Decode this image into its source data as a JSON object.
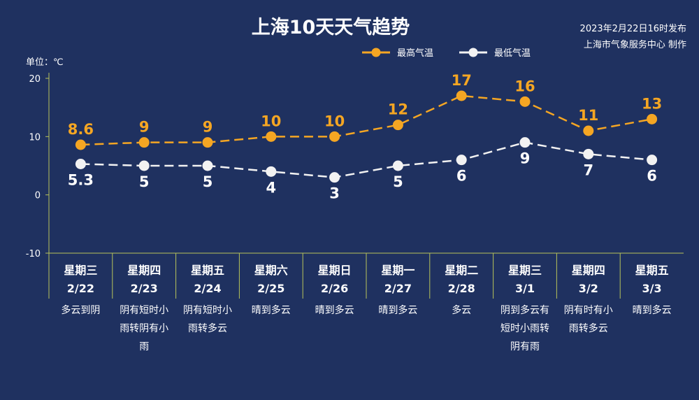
{
  "header": {
    "title": "上海10天天气趋势",
    "publish_time": "2023年2月22日16时发布",
    "publisher": "上海市气象服务中心 制作"
  },
  "colors": {
    "background": "#1f3160",
    "high": "#f5a623",
    "low": "#f2f2f2",
    "axis": "#b8c45a"
  },
  "chart_data": {
    "type": "line",
    "ylabel": "单位：℃",
    "ylim": [
      -10,
      20
    ],
    "yticks": [
      "20",
      "10",
      "0",
      "-10"
    ],
    "legend_placement": "top-right",
    "categories": [
      {
        "day": "星期三",
        "date": "2/22",
        "condition": [
          "多云到阴"
        ]
      },
      {
        "day": "星期四",
        "date": "2/23",
        "condition": [
          "阴有短时小",
          "雨转阴有小",
          "雨"
        ]
      },
      {
        "day": "星期五",
        "date": "2/24",
        "condition": [
          "阴有短时小",
          "雨转多云"
        ]
      },
      {
        "day": "星期六",
        "date": "2/25",
        "condition": [
          "晴到多云"
        ]
      },
      {
        "day": "星期日",
        "date": "2/26",
        "condition": [
          "晴到多云"
        ]
      },
      {
        "day": "星期一",
        "date": "2/27",
        "condition": [
          "晴到多云"
        ]
      },
      {
        "day": "星期二",
        "date": "2/28",
        "condition": [
          "多云"
        ]
      },
      {
        "day": "星期三",
        "date": "3/1",
        "condition": [
          "阴到多云有",
          "短时小雨转",
          "阴有雨"
        ]
      },
      {
        "day": "星期四",
        "date": "3/2",
        "condition": [
          "阴有时有小",
          "雨转多云"
        ]
      },
      {
        "day": "星期五",
        "date": "3/3",
        "condition": [
          "晴到多云"
        ]
      }
    ],
    "series": [
      {
        "name": "最高气温",
        "values": [
          8.6,
          9,
          9,
          10,
          10,
          12,
          17,
          16,
          11,
          13
        ],
        "labels": [
          "8.6",
          "9",
          "9",
          "10",
          "10",
          "12",
          "17",
          "16",
          "11",
          "13"
        ]
      },
      {
        "name": "最低气温",
        "values": [
          5.3,
          5,
          5,
          4,
          3,
          5,
          6,
          9,
          7,
          6
        ],
        "labels": [
          "5.3",
          "5",
          "5",
          "4",
          "3",
          "5",
          "6",
          "9",
          "7",
          "6"
        ]
      }
    ]
  }
}
